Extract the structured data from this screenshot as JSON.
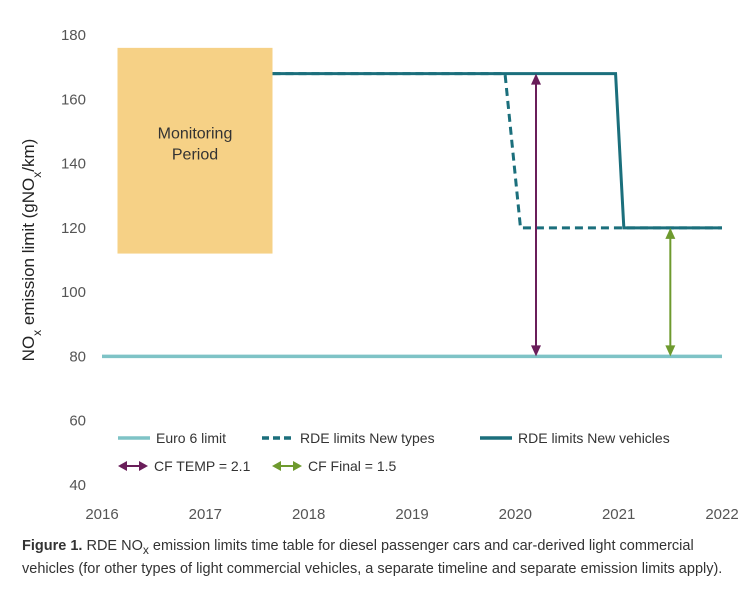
{
  "chart_data": {
    "type": "line",
    "ylabel_parts": [
      "NO",
      "x",
      " emission limit (gNO",
      "x",
      "/km)"
    ],
    "xlim": [
      2016,
      2022
    ],
    "ylim": [
      40,
      180
    ],
    "x_ticks": [
      "2016",
      "2017",
      "2018",
      "2019",
      "2020",
      "2021",
      "2022"
    ],
    "y_ticks": [
      "40",
      "60",
      "80",
      "100",
      "120",
      "140",
      "160",
      "180"
    ],
    "grid": false,
    "legend_placement": "bottom-left",
    "annotation_box": {
      "label_lines": [
        "Monitoring",
        "Period"
      ],
      "x_range": [
        2016.15,
        2017.65
      ],
      "y_range": [
        112,
        176
      ],
      "color": "#F6D186"
    },
    "series": [
      {
        "name": "Euro 6 limit",
        "style": "solid",
        "color": "#7EC3C6",
        "x": [
          2016,
          2022
        ],
        "y": [
          80,
          80
        ]
      },
      {
        "name": "RDE limits New types",
        "style": "dashed",
        "color": "#1B6F7C",
        "x": [
          2017.65,
          2019.9,
          2020.05,
          2022
        ],
        "y": [
          168,
          168,
          120,
          120
        ]
      },
      {
        "name": "RDE limits New vehicles",
        "style": "solid",
        "color": "#1B6F7C",
        "x": [
          2017.65,
          2020.97,
          2021.05,
          2022
        ],
        "y": [
          168,
          168,
          120,
          120
        ]
      }
    ],
    "arrows": [
      {
        "name": "CF TEMP = 2.1",
        "color": "#6A1E5A",
        "x": 2020.2,
        "y_from": 80,
        "y_to": 168
      },
      {
        "name": "CF Final = 1.5",
        "color": "#6E9A2E",
        "x": 2021.5,
        "y_from": 80,
        "y_to": 120
      }
    ]
  },
  "caption": {
    "label": "Figure 1.",
    "text_before_sub": " RDE NO",
    "sub": "x",
    "text_after_sub": " emission limits time table for diesel passenger cars and car-derived light commercial vehicles (for other types of light commercial vehicles, a separate timeline and separate emission limits apply)."
  }
}
